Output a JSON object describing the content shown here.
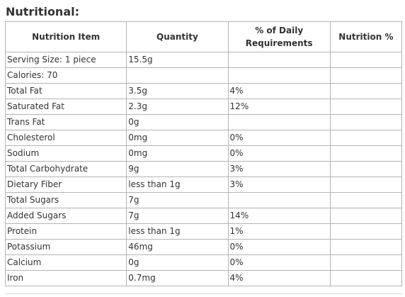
{
  "heading": "Nutritional:",
  "table": {
    "headers": {
      "item": "Nutrition Item",
      "quantity": "Quantity",
      "daily": "% of Daily Requirements",
      "pct": "Nutrition %"
    },
    "rows": [
      {
        "item": "Serving Size: 1 piece",
        "quantity": "15.5g",
        "daily": "",
        "pct": ""
      },
      {
        "item": "Calories: 70",
        "quantity": "",
        "daily": "",
        "pct": ""
      },
      {
        "item": "Total Fat",
        "quantity": "3.5g",
        "daily": "4%",
        "pct": ""
      },
      {
        "item": "Saturated Fat",
        "quantity": "2.3g",
        "daily": "12%",
        "pct": ""
      },
      {
        "item": "Trans Fat",
        "quantity": "0g",
        "daily": "",
        "pct": ""
      },
      {
        "item": "Cholesterol",
        "quantity": "0mg",
        "daily": "0%",
        "pct": ""
      },
      {
        "item": "Sodium",
        "quantity": "0mg",
        "daily": "0%",
        "pct": ""
      },
      {
        "item": "Total Carbohydrate",
        "quantity": "9g",
        "daily": "3%",
        "pct": ""
      },
      {
        "item": "Dietary Fiber",
        "quantity": "less than 1g",
        "daily": "3%",
        "pct": ""
      },
      {
        "item": "Total Sugars",
        "quantity": "7g",
        "daily": "",
        "pct": ""
      },
      {
        "item": "Added Sugars",
        "quantity": "7g",
        "daily": "14%",
        "pct": ""
      },
      {
        "item": "Protein",
        "quantity": "less than 1g",
        "daily": "1%",
        "pct": ""
      },
      {
        "item": "Potassium",
        "quantity": "46mg",
        "daily": "0%",
        "pct": ""
      },
      {
        "item": "Calcium",
        "quantity": "0g",
        "daily": "0%",
        "pct": ""
      },
      {
        "item": "Iron",
        "quantity": "0.7mg",
        "daily": "4%",
        "pct": ""
      }
    ]
  }
}
